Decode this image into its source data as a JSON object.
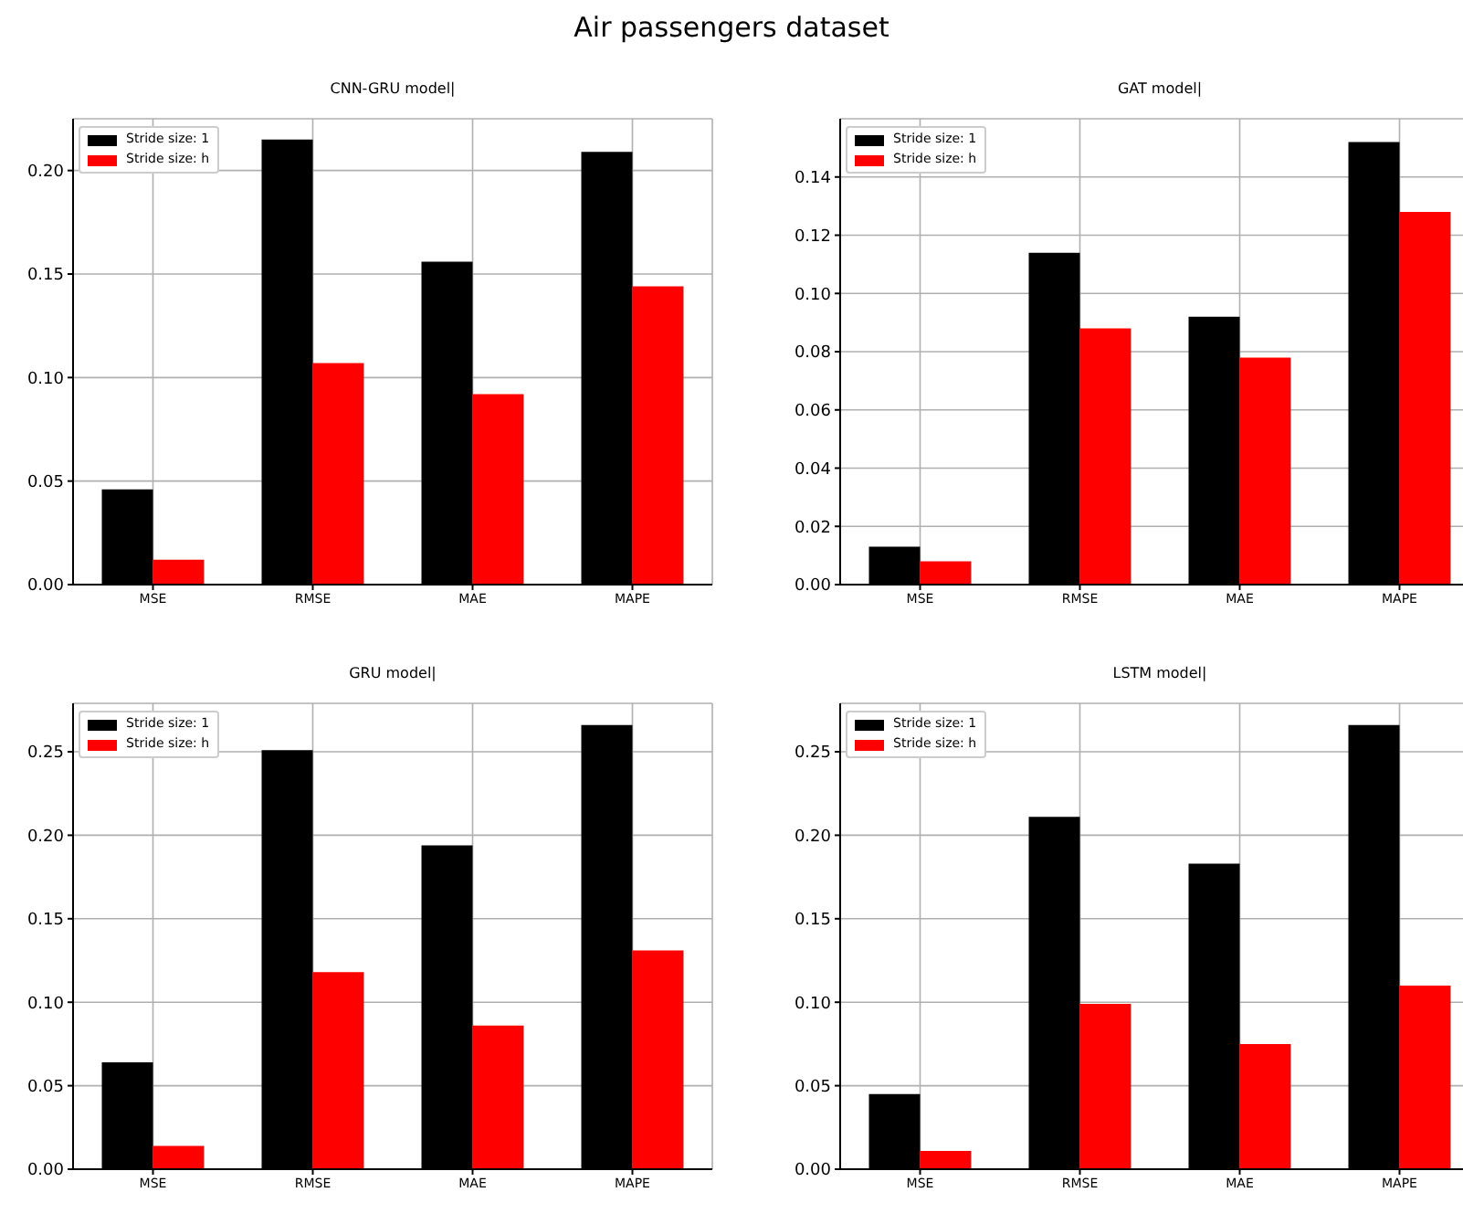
{
  "chart_data": [
    {
      "type": "bar",
      "title": "CNN-GRU model|",
      "annotations": [
        "Air passengers dataset"
      ],
      "categories": [
        "MSE",
        "RMSE",
        "MAE",
        "MAPE"
      ],
      "series": [
        {
          "name": "Stride size: 1",
          "color": "#000000",
          "values": [
            0.046,
            0.215,
            0.156,
            0.209
          ]
        },
        {
          "name": "Stride size: h",
          "color": "#ff0000",
          "values": [
            0.012,
            0.107,
            0.092,
            0.144
          ]
        }
      ],
      "ylim": [
        0,
        0.225
      ],
      "yticks": [
        {
          "value": 0,
          "label": "0.00"
        },
        {
          "value": 0.05,
          "label": "0.05"
        },
        {
          "value": 0.1,
          "label": "0.10"
        },
        {
          "value": 0.15,
          "label": "0.15"
        },
        {
          "value": 0.2,
          "label": "0.20"
        }
      ],
      "grid": true,
      "legend": "top left"
    },
    {
      "type": "bar",
      "title": "GAT model|",
      "categories": [
        "MSE",
        "RMSE",
        "MAE",
        "MAPE"
      ],
      "series": [
        {
          "name": "Stride size: 1",
          "color": "#000000",
          "values": [
            0.013,
            0.114,
            0.092,
            0.152
          ]
        },
        {
          "name": "Stride size: h",
          "color": "#ff0000",
          "values": [
            0.008,
            0.088,
            0.078,
            0.128
          ]
        }
      ],
      "ylim": [
        0,
        0.16
      ],
      "yticks": [
        {
          "value": 0,
          "label": "0.00"
        },
        {
          "value": 0.02,
          "label": "0.02"
        },
        {
          "value": 0.04,
          "label": "0.04"
        },
        {
          "value": 0.06,
          "label": "0.06"
        },
        {
          "value": 0.08,
          "label": "0.08"
        },
        {
          "value": 0.1,
          "label": "0.10"
        },
        {
          "value": 0.12,
          "label": "0.12"
        },
        {
          "value": 0.14,
          "label": "0.14"
        }
      ],
      "grid": true,
      "legend": "top left"
    },
    {
      "type": "bar",
      "title": "GRU model|",
      "categories": [
        "MSE",
        "RMSE",
        "MAE",
        "MAPE"
      ],
      "series": [
        {
          "name": "Stride size: 1",
          "color": "#000000",
          "values": [
            0.064,
            0.251,
            0.194,
            0.266
          ]
        },
        {
          "name": "Stride size: h",
          "color": "#ff0000",
          "values": [
            0.014,
            0.118,
            0.086,
            0.131
          ]
        }
      ],
      "ylim": [
        0,
        0.279
      ],
      "yticks": [
        {
          "value": 0,
          "label": "0.00"
        },
        {
          "value": 0.05,
          "label": "0.05"
        },
        {
          "value": 0.1,
          "label": "0.10"
        },
        {
          "value": 0.15,
          "label": "0.15"
        },
        {
          "value": 0.2,
          "label": "0.20"
        },
        {
          "value": 0.25,
          "label": "0.25"
        }
      ],
      "grid": true,
      "legend": "top left"
    },
    {
      "type": "bar",
      "title": "LSTM model|",
      "categories": [
        "MSE",
        "RMSE",
        "MAE",
        "MAPE"
      ],
      "series": [
        {
          "name": "Stride size: 1",
          "color": "#000000",
          "values": [
            0.045,
            0.211,
            0.183,
            0.266
          ]
        },
        {
          "name": "Stride size: h",
          "color": "#ff0000",
          "values": [
            0.011,
            0.099,
            0.075,
            0.11
          ]
        }
      ],
      "ylim": [
        0,
        0.279
      ],
      "yticks": [
        {
          "value": 0,
          "label": "0.00"
        },
        {
          "value": 0.05,
          "label": "0.05"
        },
        {
          "value": 0.1,
          "label": "0.10"
        },
        {
          "value": 0.15,
          "label": "0.15"
        },
        {
          "value": 0.2,
          "label": "0.20"
        },
        {
          "value": 0.25,
          "label": "0.25"
        }
      ],
      "grid": true,
      "legend": "top left"
    }
  ]
}
